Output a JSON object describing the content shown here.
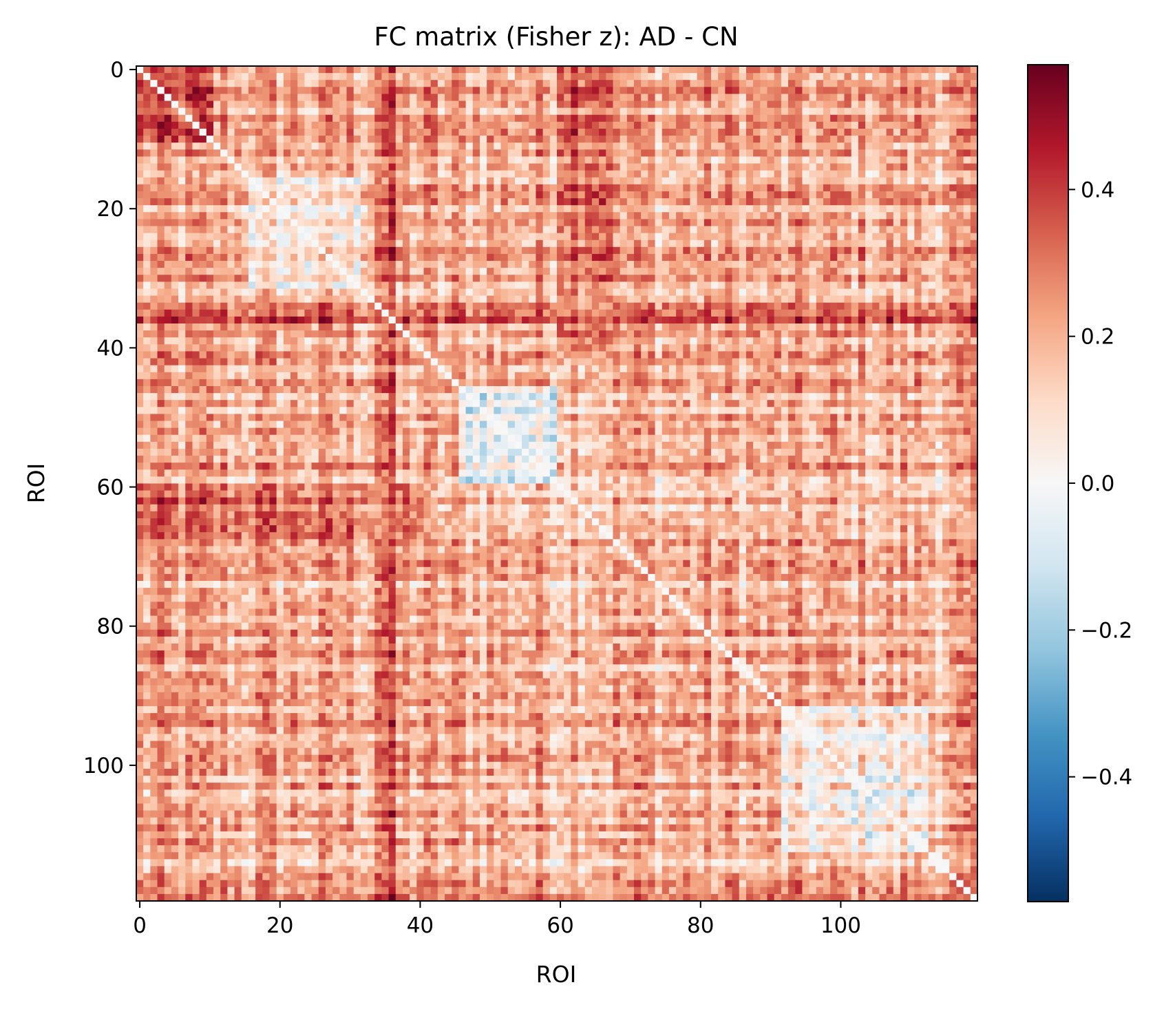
{
  "chart_data": {
    "type": "heatmap",
    "title": "FC matrix (Fisher z): AD - CN",
    "xlabel": "ROI",
    "ylabel": "ROI",
    "n_rois": 120,
    "x_ticks": [
      0,
      20,
      40,
      60,
      80,
      100
    ],
    "y_ticks": [
      0,
      20,
      40,
      60,
      80,
      100
    ],
    "x_tick_labels": [
      "0",
      "20",
      "40",
      "60",
      "80",
      "100"
    ],
    "y_tick_labels": [
      "0",
      "20",
      "40",
      "60",
      "80",
      "100"
    ],
    "colormap": "RdBu_r",
    "vmin": -0.57,
    "vmax": 0.57,
    "colorbar_ticks": [
      0.4,
      0.2,
      0.0,
      -0.2,
      -0.4
    ],
    "colorbar_tick_labels": [
      "0.4",
      "0.2",
      "0.0",
      "−0.2",
      "−0.4"
    ],
    "diagonal_value": 0.0,
    "overall_mean": 0.2,
    "blocks_approx": [
      {
        "rows": [
          16,
          31
        ],
        "cols": [
          16,
          31
        ],
        "mean": 0.04
      },
      {
        "rows": [
          46,
          59
        ],
        "cols": [
          46,
          59
        ],
        "mean": -0.02
      },
      {
        "rows": [
          92,
          112
        ],
        "cols": [
          92,
          112
        ],
        "mean": 0.03
      },
      {
        "rows": [
          60,
          67
        ],
        "cols": [
          0,
          40
        ],
        "mean": 0.35
      },
      {
        "rows": [
          34,
          36
        ],
        "cols": [
          0,
          120
        ],
        "mean": 0.32
      },
      {
        "rows": [
          0,
          10
        ],
        "cols": [
          0,
          10
        ],
        "mean": 0.33
      }
    ]
  }
}
